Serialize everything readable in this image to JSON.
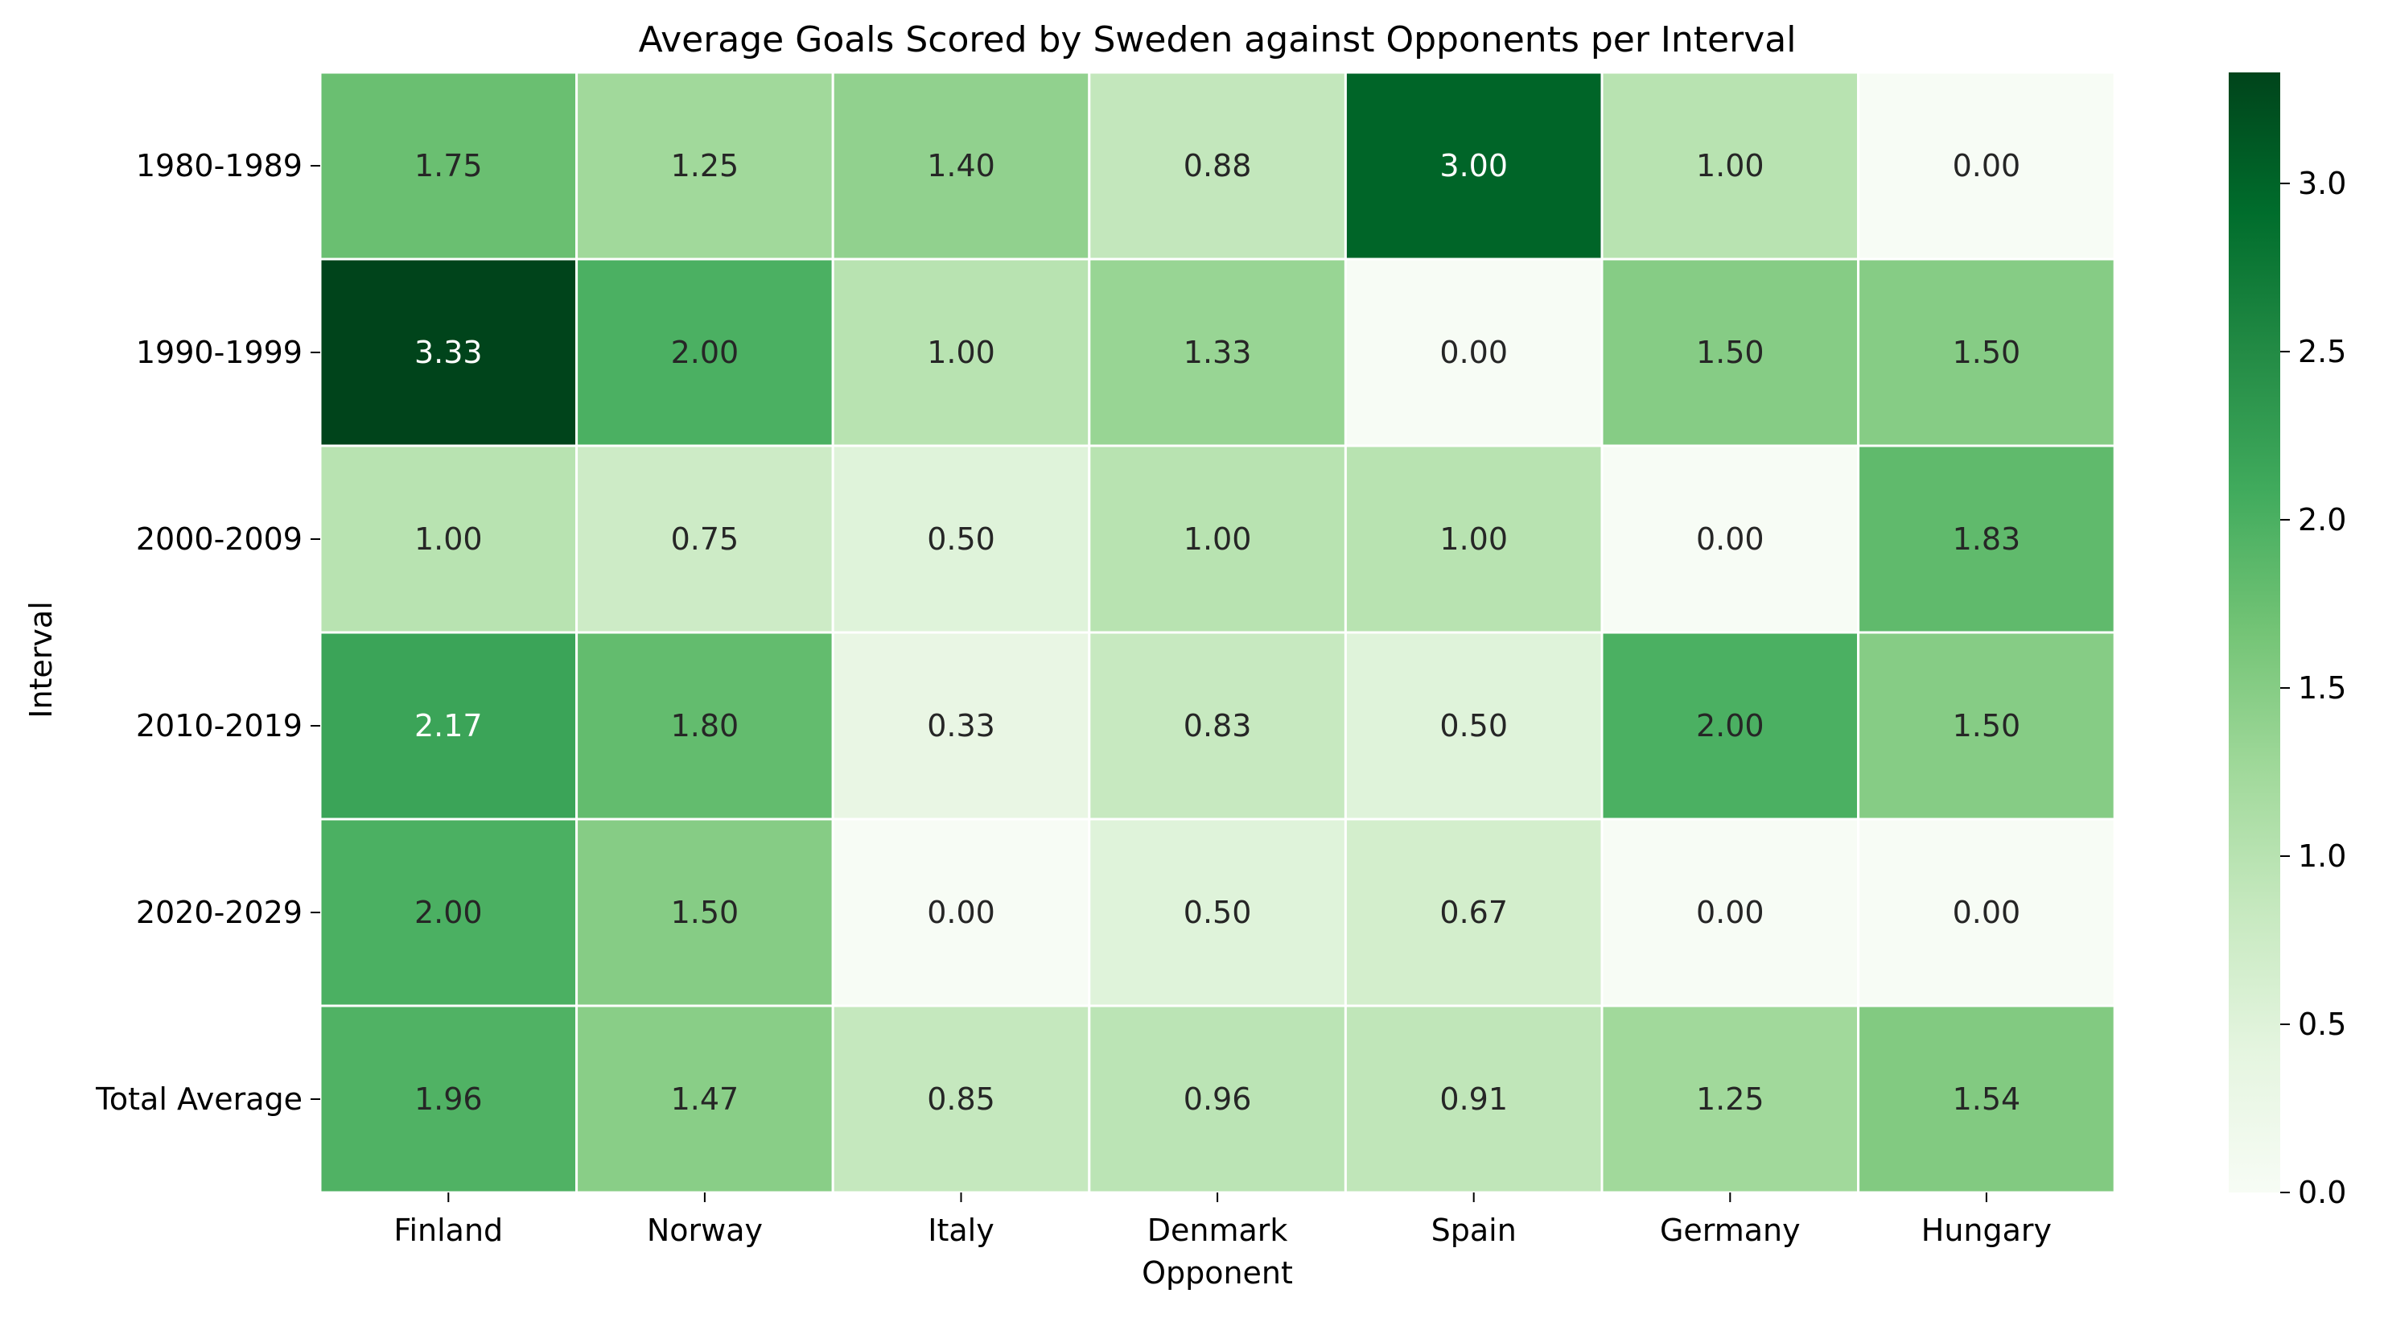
{
  "chart_data": {
    "type": "heatmap",
    "title": "Average Goals Scored by Sweden against Opponents per Interval",
    "xlabel": "Opponent",
    "ylabel": "Interval",
    "columns": [
      "Finland",
      "Norway",
      "Italy",
      "Denmark",
      "Spain",
      "Germany",
      "Hungary"
    ],
    "rows": [
      "1980-1989",
      "1990-1999",
      "2000-2009",
      "2010-2019",
      "2020-2029",
      "Total Average"
    ],
    "values": [
      [
        1.75,
        1.25,
        1.4,
        0.88,
        3.0,
        1.0,
        0.0
      ],
      [
        3.33,
        2.0,
        1.0,
        1.33,
        0.0,
        1.5,
        1.5
      ],
      [
        1.0,
        0.75,
        0.5,
        1.0,
        1.0,
        0.0,
        1.83
      ],
      [
        2.17,
        1.8,
        0.33,
        0.83,
        0.5,
        2.0,
        1.5
      ],
      [
        2.0,
        1.5,
        0.0,
        0.5,
        0.67,
        0.0,
        0.0
      ],
      [
        1.96,
        1.47,
        0.85,
        0.96,
        0.91,
        1.25,
        1.54
      ]
    ],
    "value_format": "0.00",
    "colormap": "Greens",
    "colorbar": {
      "min": 0.0,
      "max": 3.33,
      "ticks": [
        "0.0",
        "0.5",
        "1.0",
        "1.5",
        "2.0",
        "2.5",
        "3.0"
      ]
    },
    "colors": {
      "low": "#f7fcf5",
      "high": "#00441b",
      "cell_border": "#ffffff",
      "text_dark": "#262626",
      "text_light": "#ffffff"
    }
  }
}
